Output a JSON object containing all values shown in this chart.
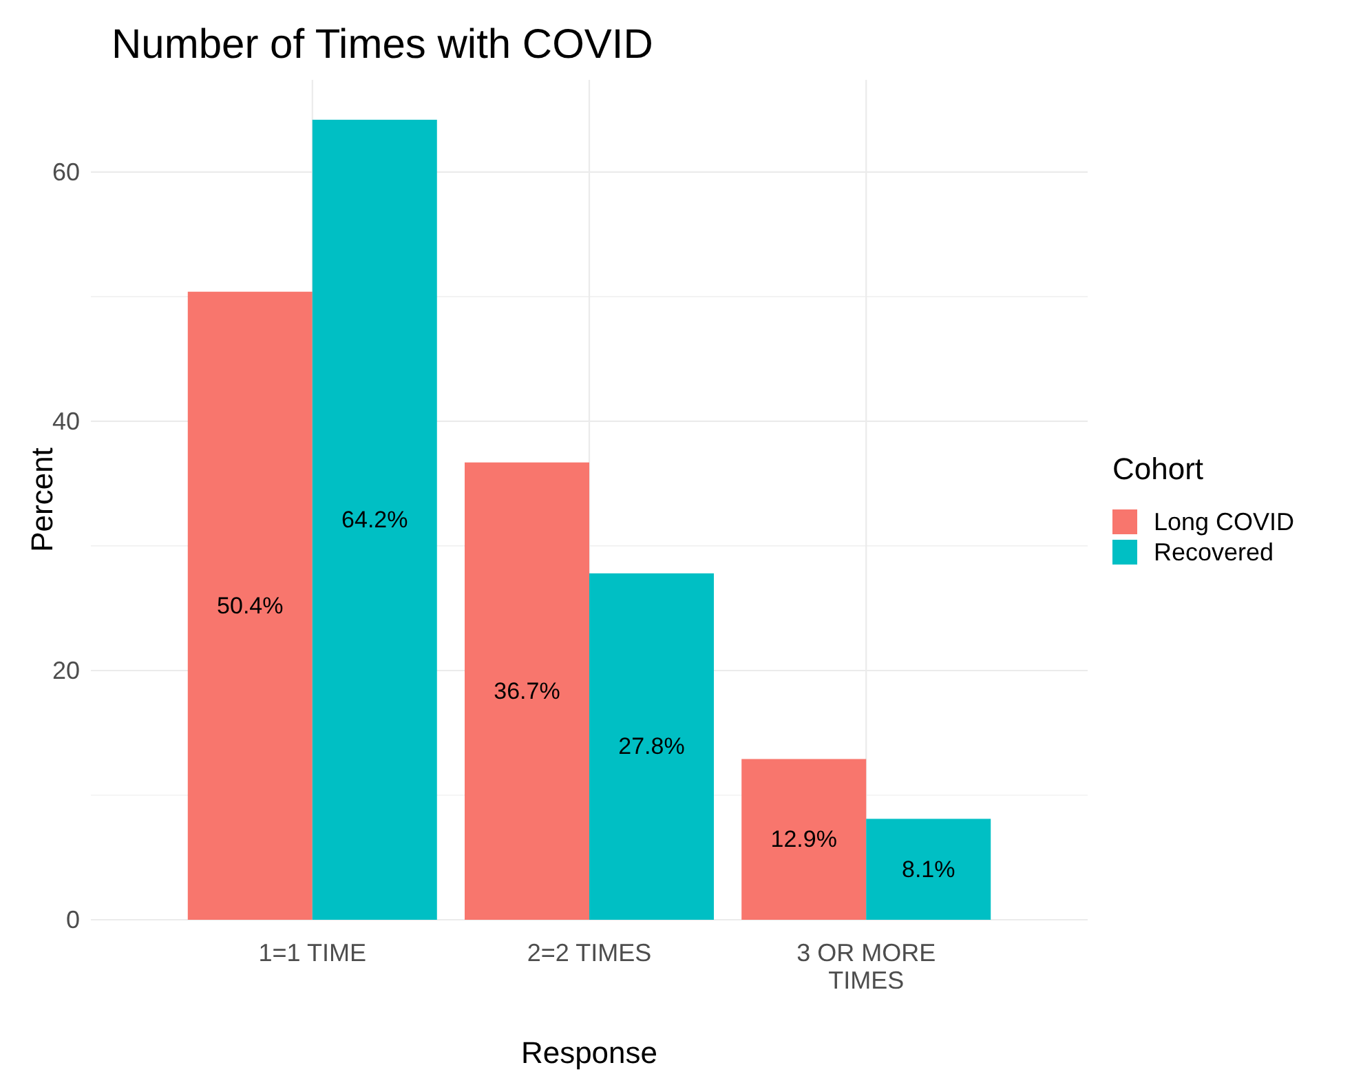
{
  "chart_data": {
    "type": "bar",
    "title": "Number of Times with COVID",
    "xlabel": "Response",
    "ylabel": "Percent",
    "legend_title": "Cohort",
    "categories": [
      "1=1 TIME",
      "2=2 TIMES",
      "3 OR MORE\nTIMES"
    ],
    "series": [
      {
        "name": "Long COVID",
        "color": "#f8766d",
        "values": [
          50.4,
          36.7,
          12.9
        ],
        "value_labels": [
          "50.4%",
          "36.7%",
          "12.9%"
        ]
      },
      {
        "name": "Recovered",
        "color": "#00bfc4",
        "values": [
          64.2,
          27.8,
          8.1
        ],
        "value_labels": [
          "64.2%",
          "27.8%",
          "8.1%"
        ]
      }
    ],
    "ylim": [
      0,
      67.4
    ],
    "yticks": [
      0,
      20,
      40,
      60
    ],
    "grid": true,
    "legend": "right"
  }
}
